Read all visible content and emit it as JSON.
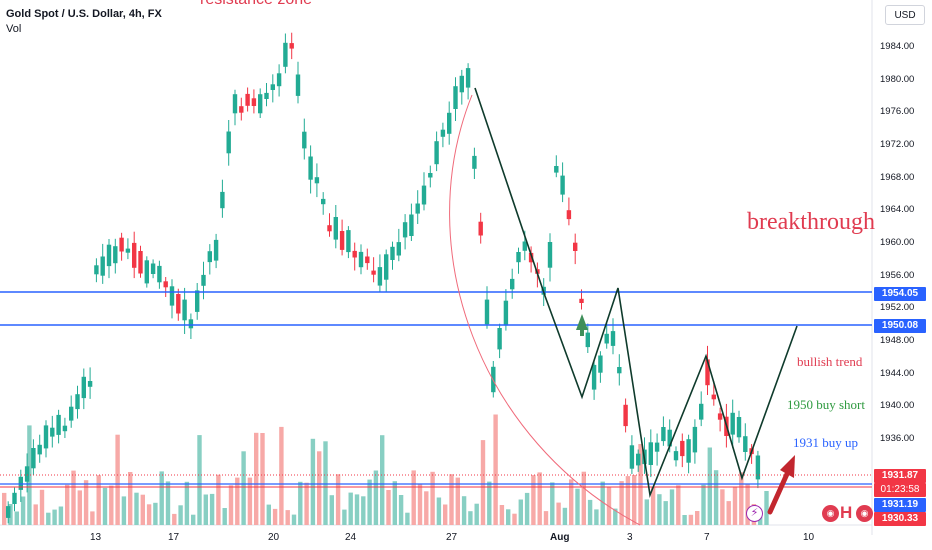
{
  "header": {
    "symbol_line": "Gold Spot / U.S. Dollar, 4h, FX",
    "volume_label": "Vol",
    "top_cut_text": "resistance zone"
  },
  "currency_button": "USD",
  "price_axis": {
    "ticks": [
      "1984.00",
      "1980.00",
      "1976.00",
      "1972.00",
      "1968.00",
      "1964.00",
      "1960.00",
      "1956.00",
      "1952.00",
      "1948.00",
      "1944.00",
      "1940.00",
      "1936.00"
    ]
  },
  "time_axis": {
    "ticks": [
      "13",
      "17",
      "20",
      "24",
      "27",
      "Aug",
      "3",
      "7",
      "10"
    ]
  },
  "price_tags": {
    "level_upper": "1954.05",
    "level_lower": "1950.08",
    "last": "1931.87",
    "countdown": "01:23:58",
    "tag_a": "1931.19",
    "tag_b": "1930.33"
  },
  "annotations": {
    "breakthrough": "breakthrough",
    "bullish_trend": "bullish trend",
    "buy_short": "1950 buy short",
    "buy_up": "1931 buy up"
  },
  "colors": {
    "up": "#22ab94",
    "down": "#f23645",
    "level": "#2962ff",
    "zigzag": "#0f3b2c",
    "vol_up": "#88cfc3",
    "vol_down": "#f7a9a7",
    "breakthrough": "#e03b50",
    "bullish": "#e03b50",
    "buy_short": "#2e9a3f",
    "buy_up": "#2962ff",
    "arrow": "#c2262e"
  },
  "icons": [
    "lightning-icon",
    "flag-us-icon",
    "flag-eu-icon"
  ]
}
